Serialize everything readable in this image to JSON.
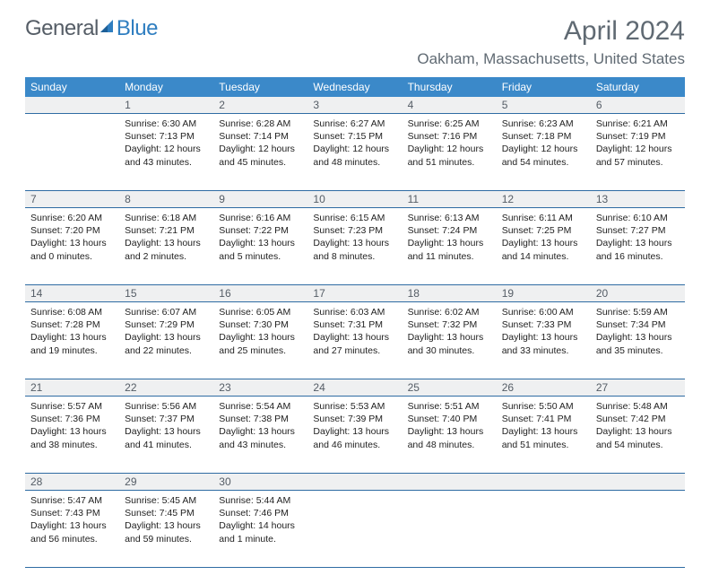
{
  "brand": {
    "text1": "General",
    "text2": "Blue",
    "color1": "#555d66",
    "color2": "#2f7ec0"
  },
  "title": "April 2024",
  "location": "Oakham, Massachusetts, United States",
  "colors": {
    "header_bg": "#3b89c9",
    "header_fg": "#ffffff",
    "daynum_bg": "#eff0f1",
    "rule": "#2f6ca3",
    "title_color": "#606a73"
  },
  "day_headers": [
    "Sunday",
    "Monday",
    "Tuesday",
    "Wednesday",
    "Thursday",
    "Friday",
    "Saturday"
  ],
  "weeks": [
    {
      "nums": [
        "",
        "1",
        "2",
        "3",
        "4",
        "5",
        "6"
      ],
      "cells": [
        {
          "empty": true
        },
        {
          "sunrise": "Sunrise: 6:30 AM",
          "sunset": "Sunset: 7:13 PM",
          "day1": "Daylight: 12 hours",
          "day2": "and 43 minutes."
        },
        {
          "sunrise": "Sunrise: 6:28 AM",
          "sunset": "Sunset: 7:14 PM",
          "day1": "Daylight: 12 hours",
          "day2": "and 45 minutes."
        },
        {
          "sunrise": "Sunrise: 6:27 AM",
          "sunset": "Sunset: 7:15 PM",
          "day1": "Daylight: 12 hours",
          "day2": "and 48 minutes."
        },
        {
          "sunrise": "Sunrise: 6:25 AM",
          "sunset": "Sunset: 7:16 PM",
          "day1": "Daylight: 12 hours",
          "day2": "and 51 minutes."
        },
        {
          "sunrise": "Sunrise: 6:23 AM",
          "sunset": "Sunset: 7:18 PM",
          "day1": "Daylight: 12 hours",
          "day2": "and 54 minutes."
        },
        {
          "sunrise": "Sunrise: 6:21 AM",
          "sunset": "Sunset: 7:19 PM",
          "day1": "Daylight: 12 hours",
          "day2": "and 57 minutes."
        }
      ]
    },
    {
      "nums": [
        "7",
        "8",
        "9",
        "10",
        "11",
        "12",
        "13"
      ],
      "cells": [
        {
          "sunrise": "Sunrise: 6:20 AM",
          "sunset": "Sunset: 7:20 PM",
          "day1": "Daylight: 13 hours",
          "day2": "and 0 minutes."
        },
        {
          "sunrise": "Sunrise: 6:18 AM",
          "sunset": "Sunset: 7:21 PM",
          "day1": "Daylight: 13 hours",
          "day2": "and 2 minutes."
        },
        {
          "sunrise": "Sunrise: 6:16 AM",
          "sunset": "Sunset: 7:22 PM",
          "day1": "Daylight: 13 hours",
          "day2": "and 5 minutes."
        },
        {
          "sunrise": "Sunrise: 6:15 AM",
          "sunset": "Sunset: 7:23 PM",
          "day1": "Daylight: 13 hours",
          "day2": "and 8 minutes."
        },
        {
          "sunrise": "Sunrise: 6:13 AM",
          "sunset": "Sunset: 7:24 PM",
          "day1": "Daylight: 13 hours",
          "day2": "and 11 minutes."
        },
        {
          "sunrise": "Sunrise: 6:11 AM",
          "sunset": "Sunset: 7:25 PM",
          "day1": "Daylight: 13 hours",
          "day2": "and 14 minutes."
        },
        {
          "sunrise": "Sunrise: 6:10 AM",
          "sunset": "Sunset: 7:27 PM",
          "day1": "Daylight: 13 hours",
          "day2": "and 16 minutes."
        }
      ]
    },
    {
      "nums": [
        "14",
        "15",
        "16",
        "17",
        "18",
        "19",
        "20"
      ],
      "cells": [
        {
          "sunrise": "Sunrise: 6:08 AM",
          "sunset": "Sunset: 7:28 PM",
          "day1": "Daylight: 13 hours",
          "day2": "and 19 minutes."
        },
        {
          "sunrise": "Sunrise: 6:07 AM",
          "sunset": "Sunset: 7:29 PM",
          "day1": "Daylight: 13 hours",
          "day2": "and 22 minutes."
        },
        {
          "sunrise": "Sunrise: 6:05 AM",
          "sunset": "Sunset: 7:30 PM",
          "day1": "Daylight: 13 hours",
          "day2": "and 25 minutes."
        },
        {
          "sunrise": "Sunrise: 6:03 AM",
          "sunset": "Sunset: 7:31 PM",
          "day1": "Daylight: 13 hours",
          "day2": "and 27 minutes."
        },
        {
          "sunrise": "Sunrise: 6:02 AM",
          "sunset": "Sunset: 7:32 PM",
          "day1": "Daylight: 13 hours",
          "day2": "and 30 minutes."
        },
        {
          "sunrise": "Sunrise: 6:00 AM",
          "sunset": "Sunset: 7:33 PM",
          "day1": "Daylight: 13 hours",
          "day2": "and 33 minutes."
        },
        {
          "sunrise": "Sunrise: 5:59 AM",
          "sunset": "Sunset: 7:34 PM",
          "day1": "Daylight: 13 hours",
          "day2": "and 35 minutes."
        }
      ]
    },
    {
      "nums": [
        "21",
        "22",
        "23",
        "24",
        "25",
        "26",
        "27"
      ],
      "cells": [
        {
          "sunrise": "Sunrise: 5:57 AM",
          "sunset": "Sunset: 7:36 PM",
          "day1": "Daylight: 13 hours",
          "day2": "and 38 minutes."
        },
        {
          "sunrise": "Sunrise: 5:56 AM",
          "sunset": "Sunset: 7:37 PM",
          "day1": "Daylight: 13 hours",
          "day2": "and 41 minutes."
        },
        {
          "sunrise": "Sunrise: 5:54 AM",
          "sunset": "Sunset: 7:38 PM",
          "day1": "Daylight: 13 hours",
          "day2": "and 43 minutes."
        },
        {
          "sunrise": "Sunrise: 5:53 AM",
          "sunset": "Sunset: 7:39 PM",
          "day1": "Daylight: 13 hours",
          "day2": "and 46 minutes."
        },
        {
          "sunrise": "Sunrise: 5:51 AM",
          "sunset": "Sunset: 7:40 PM",
          "day1": "Daylight: 13 hours",
          "day2": "and 48 minutes."
        },
        {
          "sunrise": "Sunrise: 5:50 AM",
          "sunset": "Sunset: 7:41 PM",
          "day1": "Daylight: 13 hours",
          "day2": "and 51 minutes."
        },
        {
          "sunrise": "Sunrise: 5:48 AM",
          "sunset": "Sunset: 7:42 PM",
          "day1": "Daylight: 13 hours",
          "day2": "and 54 minutes."
        }
      ]
    },
    {
      "nums": [
        "28",
        "29",
        "30",
        "",
        "",
        "",
        ""
      ],
      "cells": [
        {
          "sunrise": "Sunrise: 5:47 AM",
          "sunset": "Sunset: 7:43 PM",
          "day1": "Daylight: 13 hours",
          "day2": "and 56 minutes."
        },
        {
          "sunrise": "Sunrise: 5:45 AM",
          "sunset": "Sunset: 7:45 PM",
          "day1": "Daylight: 13 hours",
          "day2": "and 59 minutes."
        },
        {
          "sunrise": "Sunrise: 5:44 AM",
          "sunset": "Sunset: 7:46 PM",
          "day1": "Daylight: 14 hours",
          "day2": "and 1 minute."
        },
        {
          "empty": true
        },
        {
          "empty": true
        },
        {
          "empty": true
        },
        {
          "empty": true
        }
      ]
    }
  ]
}
